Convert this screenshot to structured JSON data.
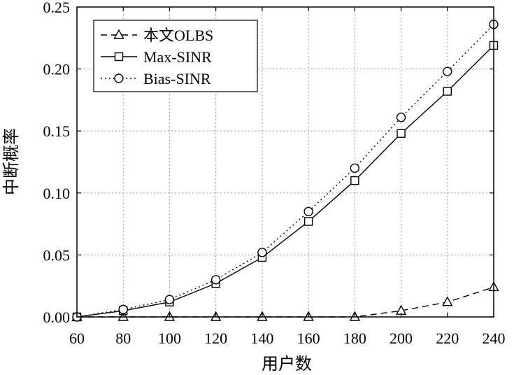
{
  "chart_data": {
    "type": "line",
    "xlabel": "用户数",
    "ylabel": "中断概率",
    "xlim": [
      60,
      240
    ],
    "ylim": [
      0,
      0.25
    ],
    "x": [
      60,
      80,
      100,
      120,
      140,
      160,
      180,
      200,
      220,
      240
    ],
    "xticks": [
      "60",
      "80",
      "100",
      "120",
      "140",
      "160",
      "180",
      "200",
      "220",
      "240"
    ],
    "yticks": [
      "0.00",
      "0.05",
      "0.10",
      "0.15",
      "0.20",
      "0.25"
    ],
    "grid": true,
    "legend_position": "top-left",
    "series": [
      {
        "name": "本文OLBS",
        "marker": "triangle",
        "line": "dashed",
        "values": [
          0.0,
          0.0,
          0.0,
          0.0,
          0.0,
          0.0,
          0.0,
          0.005,
          0.012,
          0.024
        ]
      },
      {
        "name": "Max-SINR",
        "marker": "square",
        "line": "solid",
        "values": [
          0.0,
          0.005,
          0.012,
          0.027,
          0.048,
          0.077,
          0.11,
          0.148,
          0.182,
          0.219
        ]
      },
      {
        "name": "Bias-SINR",
        "marker": "circle",
        "line": "dotted",
        "values": [
          0.0,
          0.006,
          0.014,
          0.03,
          0.052,
          0.085,
          0.12,
          0.161,
          0.198,
          0.236
        ]
      }
    ]
  }
}
